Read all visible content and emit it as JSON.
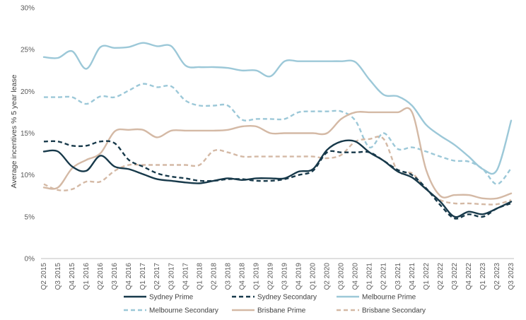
{
  "chart_data": {
    "type": "line",
    "title": "",
    "xlabel": "",
    "ylabel": "Average incentives % 5 year lease",
    "ylim": [
      0,
      30
    ],
    "yticks": [
      "0%",
      "5%",
      "10%",
      "15%",
      "20%",
      "25%",
      "30%"
    ],
    "ytick_values": [
      0,
      5,
      10,
      15,
      20,
      25,
      30
    ],
    "grid": false,
    "legend_position": "bottom",
    "categories": [
      "Q2 2015",
      "Q3 2015",
      "Q4 2015",
      "Q1 2016",
      "Q2 2016",
      "Q3 2016",
      "Q4 2016",
      "Q1 2017",
      "Q2 2017",
      "Q3 2017",
      "Q4 2017",
      "Q1 2018",
      "Q2 2018",
      "Q3 2018",
      "Q4 2018",
      "Q1 2019",
      "Q2 2019",
      "Q3 2019",
      "Q4 2019",
      "Q1 2020",
      "Q2 2020",
      "Q3 2020",
      "Q4 2020",
      "Q1 2021",
      "Q2 2021",
      "Q3 2021",
      "Q4 2021",
      "Q1 2022",
      "Q2 2022",
      "Q3 2022",
      "Q4 2022",
      "Q1 2023",
      "Q2 2023",
      "Q3 2023"
    ],
    "series": [
      {
        "name": "Sydney Prime",
        "color": "#17394A",
        "dash": "solid",
        "values": [
          12.8,
          12.8,
          11.0,
          10.5,
          12.3,
          11.0,
          10.7,
          10.1,
          9.5,
          9.3,
          9.1,
          9.0,
          9.3,
          9.6,
          9.4,
          9.6,
          9.6,
          9.6,
          10.4,
          10.7,
          13.0,
          14.0,
          14.0,
          12.7,
          11.7,
          10.4,
          9.7,
          8.3,
          6.8,
          5.0,
          5.6,
          5.3,
          6.0,
          6.8
        ]
      },
      {
        "name": "Sydney Secondary",
        "color": "#17394A",
        "dash": "dashed",
        "values": [
          14.0,
          14.0,
          13.5,
          13.5,
          14.0,
          13.8,
          11.8,
          11.0,
          10.2,
          9.8,
          9.6,
          9.3,
          9.3,
          9.5,
          9.5,
          9.3,
          9.3,
          9.5,
          10.0,
          10.5,
          12.7,
          12.7,
          12.7,
          12.7,
          11.7,
          10.6,
          10.0,
          8.4,
          6.4,
          4.8,
          5.3,
          5.0,
          6.0,
          6.6
        ]
      },
      {
        "name": "Melbourne Prime",
        "color": "#9CC8D8",
        "dash": "solid",
        "values": [
          24.1,
          24.0,
          24.8,
          22.7,
          25.3,
          25.2,
          25.3,
          25.8,
          25.4,
          25.4,
          23.1,
          22.9,
          22.9,
          22.8,
          22.5,
          22.5,
          21.8,
          23.6,
          23.6,
          23.6,
          23.6,
          23.6,
          23.5,
          21.4,
          19.6,
          19.4,
          18.3,
          16.0,
          14.7,
          13.6,
          12.2,
          10.7,
          10.6,
          16.5
        ]
      },
      {
        "name": "Melbourne Secondary",
        "color": "#9CC8D8",
        "dash": "dashed",
        "values": [
          19.3,
          19.3,
          19.3,
          18.5,
          19.4,
          19.3,
          20.1,
          20.9,
          20.5,
          20.6,
          18.9,
          18.3,
          18.3,
          18.3,
          16.6,
          16.7,
          16.7,
          16.7,
          17.5,
          17.6,
          17.6,
          17.6,
          16.5,
          13.3,
          15.0,
          13.1,
          13.3,
          12.8,
          12.2,
          11.7,
          11.6,
          10.7,
          8.9,
          10.8
        ]
      },
      {
        "name": "Brisbane Prime",
        "color": "#D4B9A5",
        "dash": "solid",
        "values": [
          8.5,
          8.5,
          10.8,
          11.8,
          12.6,
          15.2,
          15.4,
          15.4,
          14.5,
          15.3,
          15.3,
          15.3,
          15.3,
          15.4,
          15.8,
          15.8,
          15.0,
          15.0,
          15.0,
          15.0,
          15.0,
          16.7,
          17.5,
          17.5,
          17.5,
          17.5,
          17.5,
          10.6,
          7.5,
          7.6,
          7.6,
          7.2,
          7.2,
          7.8
        ]
      },
      {
        "name": "Brisbane Secondary",
        "color": "#D4B9A5",
        "dash": "dashed",
        "values": [
          8.9,
          8.2,
          8.3,
          9.2,
          9.2,
          10.5,
          11.2,
          11.2,
          11.2,
          11.2,
          11.2,
          11.2,
          12.9,
          12.7,
          12.2,
          12.2,
          12.2,
          12.2,
          12.2,
          12.2,
          12.0,
          12.4,
          14.0,
          14.3,
          14.3,
          10.4,
          10.2,
          8.3,
          7.0,
          6.6,
          6.6,
          6.5,
          6.5,
          7.0
        ]
      }
    ]
  }
}
